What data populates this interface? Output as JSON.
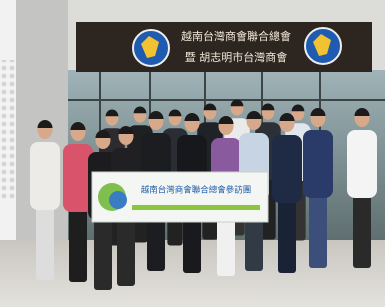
{
  "sign": {
    "line1": "越南台灣商會聯合總會",
    "line2": "暨 胡志明市台灣商會"
  },
  "banner": {
    "text": "越南台灣商會聯合總會參訪團"
  }
}
